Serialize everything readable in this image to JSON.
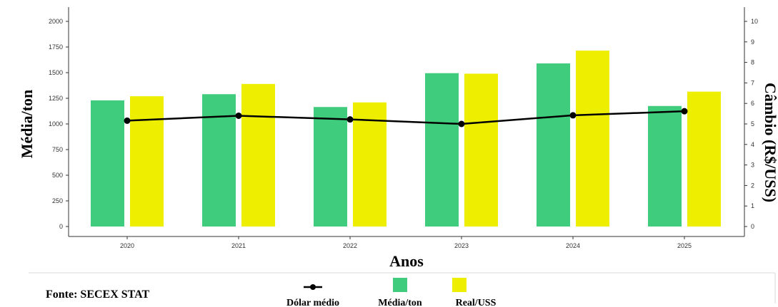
{
  "source_note": "Fonte: SECEX STAT",
  "chart_data": {
    "type": "bar",
    "categories": [
      "2020",
      "2021",
      "2022",
      "2023",
      "2024",
      "2025"
    ],
    "xlabel": "Anos",
    "ylabel": "Média/ton",
    "y2label": "Câmbio (R$/USS)",
    "ylim": [
      0,
      2000
    ],
    "yticks": [
      0,
      250,
      500,
      750,
      1000,
      1250,
      1500,
      1750,
      2000
    ],
    "y2lim": [
      0,
      10
    ],
    "y2ticks": [
      0,
      1,
      2,
      3,
      4,
      5,
      6,
      7,
      8,
      9,
      10
    ],
    "grid": false,
    "legend_position": "bottom",
    "series": [
      {
        "name": "Média/ton",
        "type": "bar",
        "axis": "left",
        "color": "#40cc7d",
        "values": [
          1230,
          1290,
          1165,
          1495,
          1590,
          1175
        ]
      },
      {
        "name": "Real/USS",
        "type": "bar",
        "axis": "left",
        "color": "#eeee00",
        "values": [
          1270,
          1390,
          1210,
          1490,
          1715,
          1315
        ]
      },
      {
        "name": "Dólar médio",
        "type": "line",
        "axis": "right",
        "color": "#000000",
        "values": [
          5.16,
          5.4,
          5.22,
          5.0,
          5.42,
          5.62
        ]
      }
    ]
  }
}
